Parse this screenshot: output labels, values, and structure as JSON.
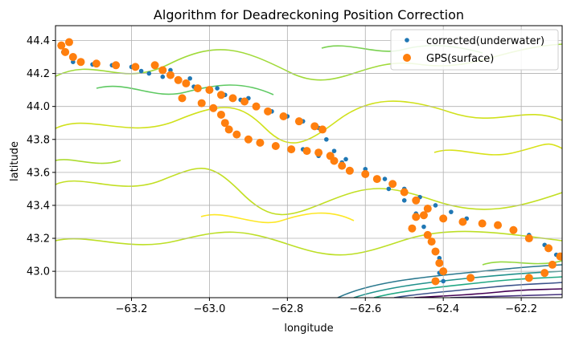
{
  "chart_data": {
    "type": "scatter",
    "title": "Algorithm for Deadreckoning Position Correction",
    "xlabel": "longitude",
    "ylabel": "latitude",
    "xlim": [
      -63.395,
      -62.095
    ],
    "ylim": [
      42.84,
      44.49
    ],
    "x_ticks": [
      -63.2,
      -63.0,
      -62.8,
      -62.6,
      -62.4,
      -62.2
    ],
    "x_tick_labels": [
      "−63.2",
      "−63.0",
      "−62.8",
      "−62.6",
      "−62.4",
      "−62.2"
    ],
    "y_ticks": [
      43.0,
      43.2,
      43.4,
      43.6,
      43.8,
      44.0,
      44.2,
      44.4
    ],
    "y_tick_labels": [
      "43.0",
      "43.2",
      "43.4",
      "43.6",
      "43.8",
      "44.0",
      "44.2",
      "44.4"
    ],
    "grid": true,
    "legend_position": "top-right",
    "series": [
      {
        "name": "corrected(underwater)",
        "color": "#1f77b4",
        "marker": "small-dot",
        "points": [
          [
            -63.375,
            44.33
          ],
          [
            -63.35,
            44.27
          ],
          [
            -63.3,
            44.255
          ],
          [
            -63.25,
            44.25
          ],
          [
            -63.2,
            44.24
          ],
          [
            -63.175,
            44.215
          ],
          [
            -63.155,
            44.2
          ],
          [
            -63.12,
            44.18
          ],
          [
            -63.08,
            44.15
          ],
          [
            -63.04,
            44.12
          ],
          [
            -63.0,
            44.1
          ],
          [
            -62.96,
            44.07
          ],
          [
            -62.92,
            44.04
          ],
          [
            -62.88,
            44.0
          ],
          [
            -62.84,
            43.97
          ],
          [
            -62.8,
            43.94
          ],
          [
            -62.76,
            43.91
          ],
          [
            -62.72,
            43.87
          ],
          [
            -62.7,
            43.8
          ],
          [
            -62.68,
            43.73
          ],
          [
            -62.65,
            43.68
          ],
          [
            -62.6,
            43.62
          ],
          [
            -62.55,
            43.56
          ],
          [
            -62.5,
            43.5
          ],
          [
            -62.46,
            43.45
          ],
          [
            -62.42,
            43.4
          ],
          [
            -62.38,
            43.36
          ],
          [
            -62.34,
            43.32
          ],
          [
            -62.3,
            43.3
          ],
          [
            -62.26,
            43.28
          ],
          [
            -62.22,
            43.26
          ],
          [
            -62.18,
            43.22
          ],
          [
            -62.14,
            43.16
          ],
          [
            -62.11,
            43.1
          ],
          [
            -62.76,
            43.74
          ],
          [
            -62.72,
            43.7
          ],
          [
            -62.66,
            43.66
          ],
          [
            -62.6,
            43.58
          ],
          [
            -62.54,
            43.5
          ],
          [
            -62.5,
            43.43
          ],
          [
            -62.47,
            43.35
          ],
          [
            -62.45,
            43.27
          ],
          [
            -62.43,
            43.18
          ],
          [
            -62.41,
            43.08
          ],
          [
            -62.41,
            42.99
          ],
          [
            -62.4,
            42.94
          ],
          [
            -63.1,
            44.22
          ],
          [
            -63.05,
            44.17
          ],
          [
            -62.98,
            44.11
          ],
          [
            -62.9,
            44.05
          ]
        ]
      },
      {
        "name": "GPS(surface)",
        "color": "#ff7f0e",
        "marker": "circle",
        "points": [
          [
            -63.38,
            44.37
          ],
          [
            -63.37,
            44.33
          ],
          [
            -63.36,
            44.39
          ],
          [
            -63.35,
            44.3
          ],
          [
            -63.33,
            44.27
          ],
          [
            -63.29,
            44.26
          ],
          [
            -63.24,
            44.25
          ],
          [
            -63.19,
            44.24
          ],
          [
            -63.14,
            44.25
          ],
          [
            -63.12,
            44.22
          ],
          [
            -63.1,
            44.19
          ],
          [
            -63.08,
            44.16
          ],
          [
            -63.06,
            44.14
          ],
          [
            -63.03,
            44.11
          ],
          [
            -63.0,
            44.1
          ],
          [
            -62.97,
            44.07
          ],
          [
            -62.94,
            44.05
          ],
          [
            -62.91,
            44.03
          ],
          [
            -62.88,
            44.0
          ],
          [
            -62.85,
            43.97
          ],
          [
            -62.81,
            43.94
          ],
          [
            -62.77,
            43.91
          ],
          [
            -62.73,
            43.88
          ],
          [
            -62.71,
            43.86
          ],
          [
            -63.07,
            44.05
          ],
          [
            -63.02,
            44.02
          ],
          [
            -62.99,
            43.99
          ],
          [
            -62.97,
            43.95
          ],
          [
            -62.96,
            43.9
          ],
          [
            -62.95,
            43.86
          ],
          [
            -62.93,
            43.83
          ],
          [
            -62.9,
            43.8
          ],
          [
            -62.87,
            43.78
          ],
          [
            -62.83,
            43.76
          ],
          [
            -62.79,
            43.74
          ],
          [
            -62.75,
            43.73
          ],
          [
            -62.72,
            43.72
          ],
          [
            -62.69,
            43.7
          ],
          [
            -62.68,
            43.67
          ],
          [
            -62.66,
            43.64
          ],
          [
            -62.64,
            43.61
          ],
          [
            -62.6,
            43.59
          ],
          [
            -62.57,
            43.56
          ],
          [
            -62.53,
            43.53
          ],
          [
            -62.5,
            43.48
          ],
          [
            -62.47,
            43.43
          ],
          [
            -62.44,
            43.38
          ],
          [
            -62.47,
            43.33
          ],
          [
            -62.48,
            43.26
          ],
          [
            -62.44,
            43.22
          ],
          [
            -62.43,
            43.18
          ],
          [
            -62.42,
            43.12
          ],
          [
            -62.41,
            43.05
          ],
          [
            -62.4,
            43.0
          ],
          [
            -62.42,
            42.94
          ],
          [
            -62.33,
            42.96
          ],
          [
            -62.18,
            42.96
          ],
          [
            -62.14,
            42.99
          ],
          [
            -62.12,
            43.04
          ],
          [
            -62.1,
            43.09
          ],
          [
            -62.13,
            43.14
          ],
          [
            -62.18,
            43.2
          ],
          [
            -62.22,
            43.25
          ],
          [
            -62.26,
            43.28
          ],
          [
            -62.3,
            43.29
          ],
          [
            -62.35,
            43.3
          ],
          [
            -62.4,
            43.32
          ],
          [
            -62.45,
            43.34
          ]
        ]
      }
    ],
    "background": "bathymetry contour lines (viridis colormap)"
  }
}
